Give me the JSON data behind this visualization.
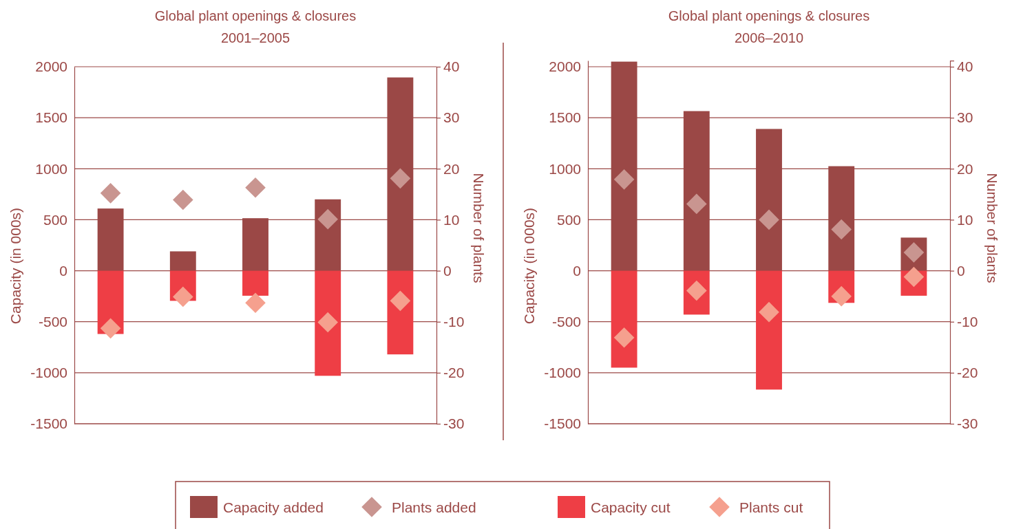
{
  "chart_data": [
    {
      "type": "bar",
      "title": "Global plant openings & closures",
      "subtitle": "2001–2005",
      "ylabel": "Capacity  (in 000s)",
      "y2label": "Number of plants",
      "categories": [
        null,
        null,
        null,
        null,
        null
      ],
      "stacked": true,
      "grid": "y",
      "legend": "bottom",
      "ylim": [
        -1500,
        2000
      ],
      "yticks": [
        -1500,
        -1000,
        -500,
        0,
        500,
        1000,
        1500,
        2000
      ],
      "y2lim": [
        -30,
        40
      ],
      "y2ticks": [
        -30,
        -20,
        -10,
        0,
        10,
        20,
        30,
        40
      ],
      "series": [
        {
          "name": "Capacity added",
          "color": "#9b4846",
          "values": [
            610,
            190,
            515,
            700,
            1895
          ]
        },
        {
          "type": "scatter",
          "axis": "y2",
          "marker": "diamond",
          "name": "Plants added",
          "color": "#c99590",
          "values": [
            15.2,
            13.9,
            16.3,
            10.1,
            18.1
          ]
        },
        {
          "name": "Capacity cut",
          "color": "#ee3e45",
          "values": [
            -620,
            -295,
            -245,
            -1030,
            -820
          ]
        },
        {
          "type": "scatter",
          "axis": "y2",
          "marker": "diamond",
          "name": "Plants cut",
          "color": "#f5a08e",
          "values": [
            -11.3,
            -5.1,
            -6.3,
            -10.1,
            -5.9
          ]
        }
      ]
    },
    {
      "type": "bar",
      "title": "Global plant openings & closures",
      "subtitle": "2006–2010",
      "ylabel": "Capacity  (in 000s)",
      "y2label": "Number of plants",
      "categories": [
        null,
        null,
        null,
        null,
        null
      ],
      "stacked": true,
      "grid": "y",
      "ylim": [
        -1500,
        2060
      ],
      "yticks": [
        -1500,
        -1000,
        -500,
        0,
        500,
        1000,
        1500,
        2000
      ],
      "y2lim": [
        -30,
        41.2
      ],
      "y2ticks": [
        -30,
        -20,
        -10,
        0,
        10,
        20,
        30,
        40
      ],
      "series": [
        {
          "color": "#9b4846",
          "values": [
            2050,
            1565,
            1390,
            1025,
            325
          ]
        },
        {
          "type": "scatter",
          "axis": "y2",
          "marker": "diamond",
          "color": "#c99590",
          "values": [
            17.9,
            13.1,
            10,
            8.1,
            3.6
          ]
        },
        {
          "color": "#ee3e45",
          "values": [
            -950,
            -430,
            -1165,
            -315,
            -245
          ]
        },
        {
          "type": "scatter",
          "axis": "y2",
          "marker": "diamond",
          "color": "#f5a08e",
          "values": [
            -13.1,
            -3.9,
            -8.1,
            -5,
            -1.2
          ]
        }
      ]
    }
  ]
}
